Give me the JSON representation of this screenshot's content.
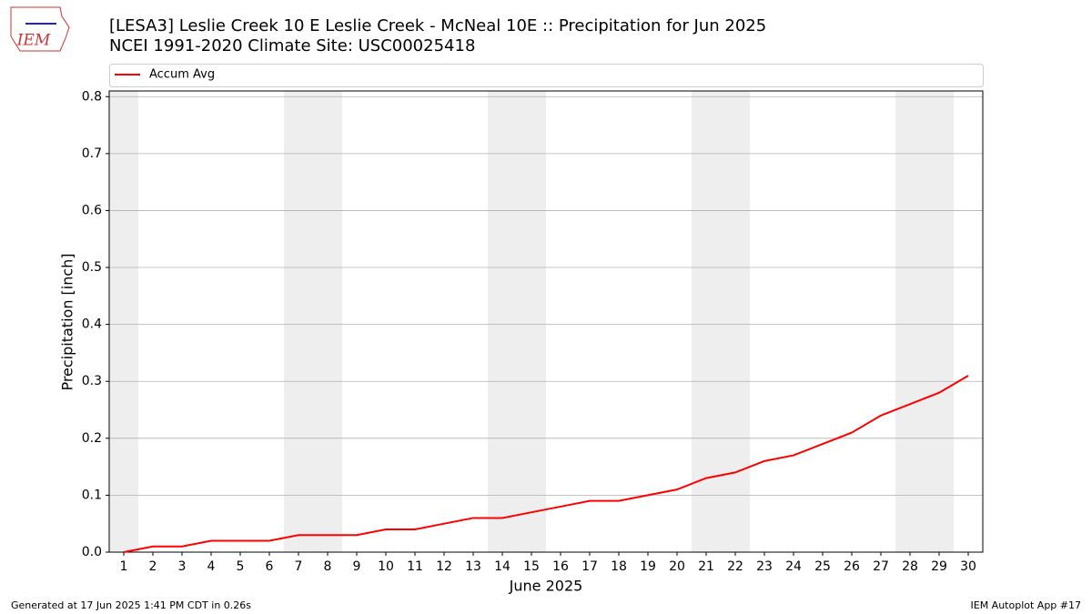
{
  "chart_data": {
    "type": "line",
    "title": "[LESA3] Leslie Creek 10 E Leslie Creek - McNeal 10E :: Precipitation for Jun 2025",
    "subtitle": "NCEI 1991-2020 Climate Site: USC00025418",
    "x_label": "June 2025",
    "y_label": "Precipitation [inch]",
    "x": [
      1,
      2,
      3,
      4,
      5,
      6,
      7,
      8,
      9,
      10,
      11,
      12,
      13,
      14,
      15,
      16,
      17,
      18,
      19,
      20,
      21,
      22,
      23,
      24,
      25,
      26,
      27,
      28,
      29,
      30
    ],
    "series": [
      {
        "name": "Accum Avg",
        "color": "#ff0000",
        "values": [
          0,
          0.01,
          0.01,
          0.02,
          0.02,
          0.02,
          0.03,
          0.03,
          0.03,
          0.04,
          0.04,
          0.05,
          0.06,
          0.06,
          0.07,
          0.08,
          0.09,
          0.09,
          0.1,
          0.11,
          0.13,
          0.14,
          0.16,
          0.17,
          0.19,
          0.21,
          0.24,
          0.26,
          0.28,
          0.31
        ]
      }
    ],
    "xlim": [
      0.5,
      30.5
    ],
    "xticks": [
      1,
      2,
      3,
      4,
      5,
      6,
      7,
      8,
      9,
      10,
      11,
      12,
      13,
      14,
      15,
      16,
      17,
      18,
      19,
      20,
      21,
      22,
      23,
      24,
      25,
      26,
      27,
      28,
      29,
      30
    ],
    "ylim": [
      0,
      0.81
    ],
    "yticks": [
      {
        "value": 0,
        "label": "0.0"
      },
      0.1,
      0.2,
      0.3,
      0.4,
      0.5,
      0.6,
      0.7,
      0.8
    ],
    "grid": true,
    "shaded_days": [
      1,
      7,
      8,
      14,
      15,
      21,
      22,
      28,
      29
    ],
    "legend": "top"
  },
  "logo": "IEM",
  "footer": {
    "left": "Generated at 17 Jun 2025 1:41 PM CDT in 0.26s",
    "right": "IEM Autoplot App #17"
  }
}
